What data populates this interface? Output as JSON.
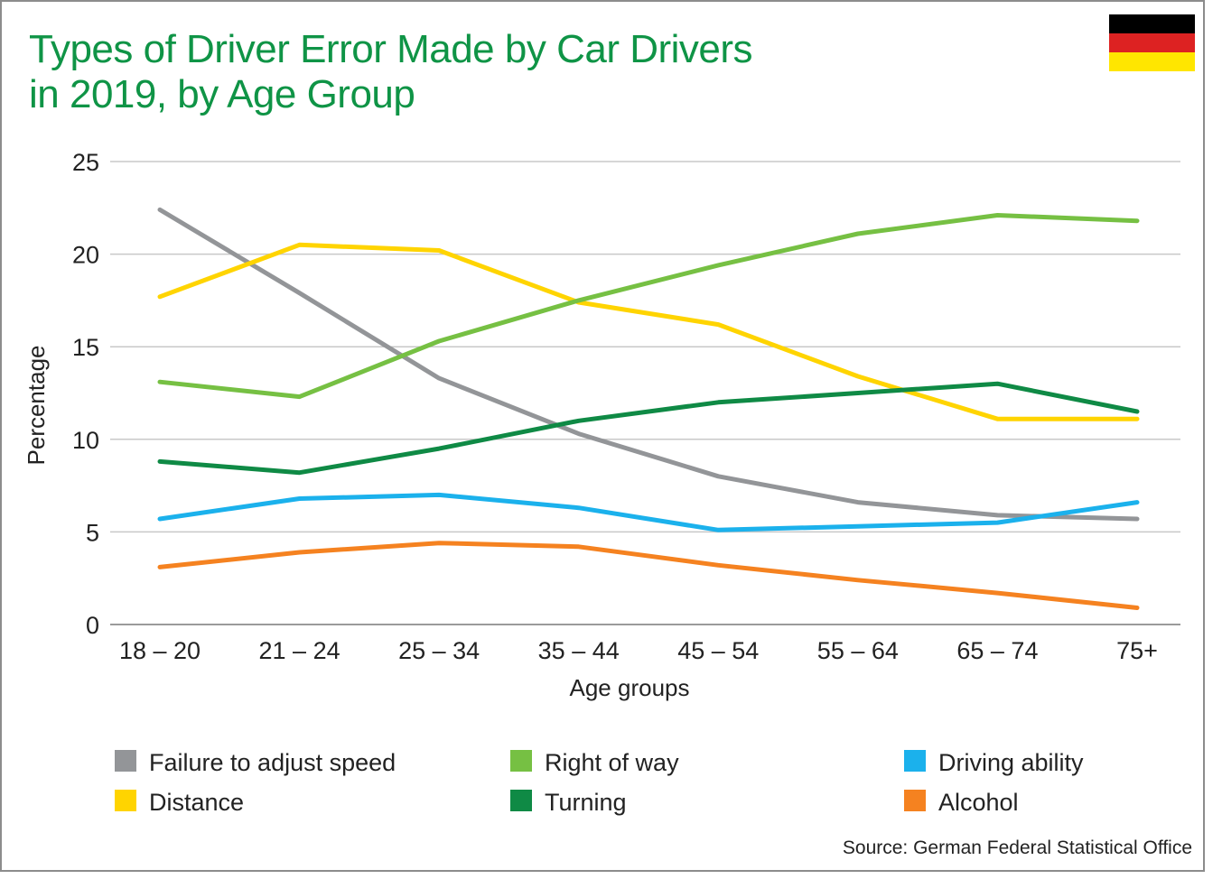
{
  "title": {
    "line1": "Types of Driver Error Made by Car Drivers",
    "line2": "in 2019, by Age Group"
  },
  "flag": {
    "name": "germany-flag",
    "colors": [
      "#000000",
      "#dd2222",
      "#ffe600"
    ]
  },
  "source": "Source: German Federal Statistical Office",
  "chart_data": {
    "type": "line",
    "title": "Types of Driver Error Made by Car Drivers in 2019, by Age Group",
    "xlabel": "Age groups",
    "ylabel": "Percentage",
    "ylim": [
      0,
      25
    ],
    "yticks": [
      0,
      5,
      10,
      15,
      20,
      25
    ],
    "grid": true,
    "legend_position": "bottom",
    "categories": [
      "18 – 20",
      "21 – 24",
      "25 – 34",
      "35 – 44",
      "45 – 54",
      "55 – 64",
      "65 – 74",
      "75+"
    ],
    "series": [
      {
        "name": "Failure to adjust speed",
        "color": "#939598",
        "values": [
          22.4,
          17.9,
          13.3,
          10.3,
          8.0,
          6.6,
          5.9,
          5.7
        ]
      },
      {
        "name": "Distance",
        "color": "#ffd400",
        "values": [
          17.7,
          20.5,
          20.2,
          17.4,
          16.2,
          13.4,
          11.1,
          11.1
        ]
      },
      {
        "name": "Right of way",
        "color": "#76c043",
        "values": [
          13.1,
          12.3,
          15.3,
          17.5,
          19.4,
          21.1,
          22.1,
          21.8
        ]
      },
      {
        "name": "Turning",
        "color": "#0f8a45",
        "values": [
          8.8,
          8.2,
          9.5,
          11.0,
          12.0,
          12.5,
          13.0,
          11.5
        ]
      },
      {
        "name": "Driving ability",
        "color": "#1bb1ec",
        "values": [
          5.7,
          6.8,
          7.0,
          6.3,
          5.1,
          5.3,
          5.5,
          6.6
        ]
      },
      {
        "name": "Alcohol",
        "color": "#f58220",
        "values": [
          3.1,
          3.9,
          4.4,
          4.2,
          3.2,
          2.4,
          1.7,
          0.9
        ]
      }
    ]
  }
}
